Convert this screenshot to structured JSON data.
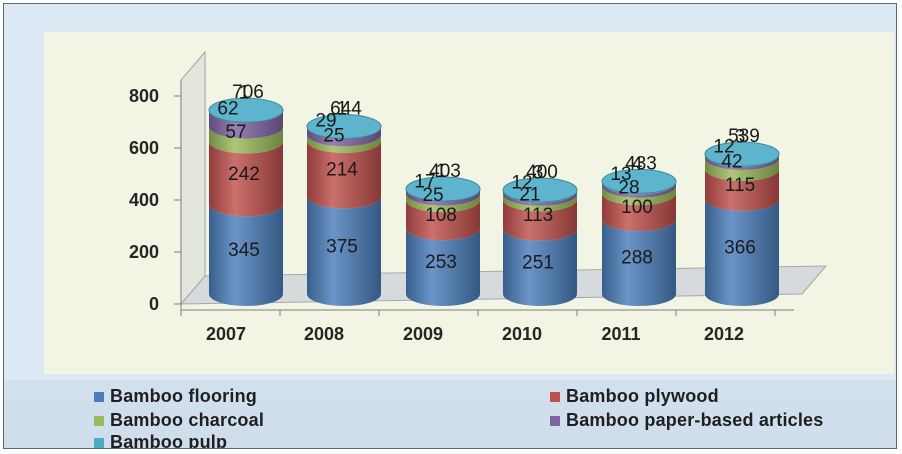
{
  "chart_data": {
    "type": "bar",
    "stacked": true,
    "style": "3d-cylinder",
    "categories": [
      "2007",
      "2008",
      "2009",
      "2010",
      "2011",
      "2012"
    ],
    "totals": [
      "706",
      "644",
      "403",
      "400",
      "433",
      "539"
    ],
    "series": [
      {
        "name": "Bamboo flooring",
        "color": "#4a7ebb",
        "values": [
          345,
          375,
          253,
          251,
          288,
          366
        ]
      },
      {
        "name": "Bamboo plywood",
        "color": "#c0504d",
        "values": [
          242,
          214,
          108,
          113,
          100,
          115
        ]
      },
      {
        "name": "Bamboo charcoal",
        "color": "#9bbb59",
        "values": [
          57,
          25,
          25,
          21,
          28,
          42
        ]
      },
      {
        "name": "Bamboo paper-based articles",
        "color": "#8064a2",
        "values": [
          62,
          29,
          17,
          12,
          13,
          12
        ]
      },
      {
        "name": "Bamboo pulp",
        "color": "#4bacc6",
        "values": [
          1,
          1,
          1,
          3,
          4,
          3
        ]
      }
    ],
    "y_ticks": [
      "0",
      "200",
      "400",
      "600",
      "800"
    ],
    "ylim": [
      0,
      800
    ],
    "legend_position": "bottom"
  },
  "legend": {
    "items": [
      {
        "label": "Bamboo flooring",
        "color": "#4a7ebb"
      },
      {
        "label": "Bamboo plywood",
        "color": "#c0504d"
      },
      {
        "label": "Bamboo charcoal",
        "color": "#9bbb59"
      },
      {
        "label": "Bamboo paper-based articles",
        "color": "#8064a2"
      },
      {
        "label": "Bamboo pulp",
        "color": "#4bacc6"
      }
    ]
  }
}
